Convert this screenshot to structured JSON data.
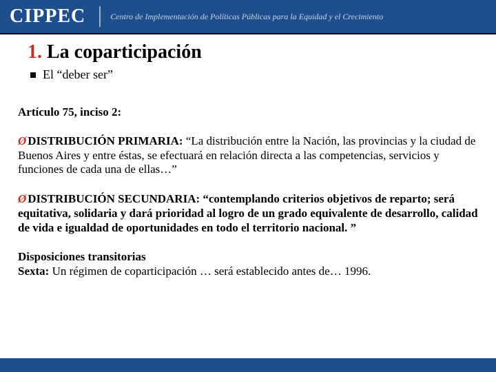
{
  "header": {
    "logo": "CIPPEC",
    "tagline": "Centro de Implementación de Políticas Públicas para la Equidad y el Crecimiento"
  },
  "title": {
    "number": "1.",
    "text": "La coparticipación"
  },
  "bullet": "El “deber ser”",
  "article_heading": "Artículo 75, inciso 2:",
  "dist_primaria": {
    "label": "DISTRIBUCIÓN PRIMARIA:",
    "body": " “La distribución entre la Nación, las provincias y la ciudad de Buenos Aires y entre éstas, se efectuará en relación directa a las competencias, servicios y funciones de cada una de ellas…”"
  },
  "dist_secundaria": {
    "label": "DISTRIBUCIÓN SECUNDARIA:",
    "body": " “contemplando criterios objetivos de reparto; será equitativa, solidaria y dará prioridad al logro de un grado equivalente de desarrollo, calidad de vida e igualdad de oportunidades en todo el territorio nacional. ”"
  },
  "disposiciones": {
    "heading": "Disposiciones transitorias",
    "sexta_label": "Sexta:",
    "sexta_body": " Un régimen de coparticipación … será establecido antes de… 1996."
  },
  "colors": {
    "header_bg": "#1f4e8c",
    "accent_red": "#c03024",
    "text": "#000000",
    "tagline": "#c7d6ea"
  }
}
